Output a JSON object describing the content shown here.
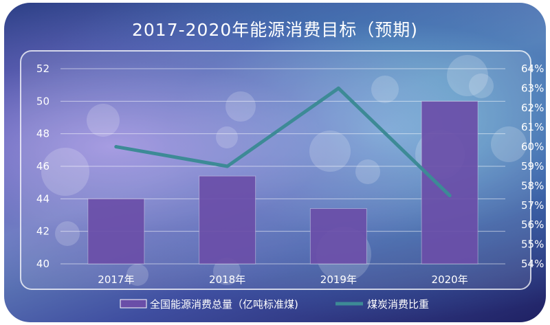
{
  "chart_data": {
    "type": "bar",
    "title": "2017-2020年能源消费目标（预期)",
    "categories": [
      "2017年",
      "2018年",
      "2019年",
      "2020年"
    ],
    "series": [
      {
        "name": "全国能源消费总量（亿吨标准煤)",
        "type": "bar",
        "axis": "left",
        "values": [
          44.0,
          45.4,
          43.4,
          50.0
        ],
        "color": "#6a4ea8"
      },
      {
        "name": "煤炭消费比重",
        "type": "line",
        "axis": "right",
        "values": [
          60.0,
          59.0,
          63.0,
          57.5
        ],
        "color": "#3d8a96"
      }
    ],
    "y_left": {
      "ylim": [
        40,
        52
      ],
      "ticks": [
        "40",
        "42",
        "44",
        "46",
        "48",
        "50",
        "52"
      ]
    },
    "y_right": {
      "ylim": [
        54,
        64
      ],
      "ticks": [
        "54%",
        "55%",
        "56%",
        "57%",
        "58%",
        "59%",
        "60%",
        "61%",
        "62%",
        "63%",
        "64%"
      ]
    },
    "grid": true,
    "legend_position": "bottom"
  }
}
